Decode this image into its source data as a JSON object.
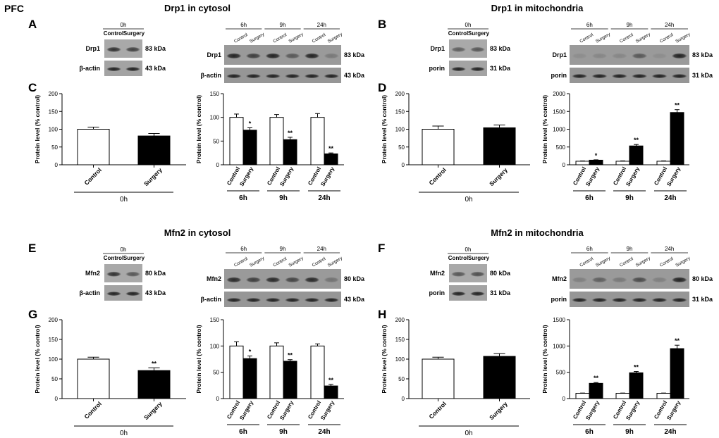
{
  "figure_label": "PFC",
  "sections": [
    {
      "title": "Drp1 in cytosol",
      "blot_panel": "A",
      "chart_panel": "C",
      "reference_protein": "β-actin",
      "target_protein": "Drp1",
      "target_kda": "83 kDa",
      "reference_kda": "43 kDa",
      "blot_small": {
        "time": "0h",
        "lane_labels": [
          "Control",
          "Surgery"
        ],
        "target_band_intensity": [
          0.8,
          0.7
        ],
        "reference_band_intensity": [
          0.9,
          0.9
        ]
      },
      "blot_large": {
        "times": [
          "6h",
          "9h",
          "24h"
        ],
        "lane_labels": [
          "Control",
          "Surgery"
        ],
        "target_band_intensity": [
          0.9,
          0.7,
          0.9,
          0.5,
          0.9,
          0.25
        ],
        "reference_band_intensity": [
          0.9,
          0.9,
          0.9,
          0.9,
          0.9,
          0.9
        ]
      }
    },
    {
      "title": "Drp1 in mitochondria",
      "blot_panel": "B",
      "chart_panel": "D",
      "reference_protein": "porin",
      "target_protein": "Drp1",
      "target_kda": "83 kDa",
      "reference_kda": "31 kDa",
      "blot_small": {
        "time": "0h",
        "lane_labels": [
          "Control",
          "Surgery"
        ],
        "target_band_intensity": [
          0.5,
          0.55
        ],
        "reference_band_intensity": [
          0.9,
          0.9
        ]
      },
      "blot_large": {
        "times": [
          "6h",
          "9h",
          "24h"
        ],
        "lane_labels": [
          "Control",
          "Surgery"
        ],
        "target_band_intensity": [
          0.1,
          0.15,
          0.15,
          0.5,
          0.1,
          0.9
        ],
        "reference_band_intensity": [
          0.9,
          0.9,
          0.9,
          0.9,
          0.9,
          0.9
        ]
      }
    },
    {
      "title": "Mfn2 in cytosol",
      "blot_panel": "E",
      "chart_panel": "G",
      "reference_protein": "β-actin",
      "target_protein": "Mfn2",
      "target_kda": "80 kDa",
      "reference_kda": "43 kDa",
      "blot_small": {
        "time": "0h",
        "lane_labels": [
          "Control",
          "Surgery"
        ],
        "target_band_intensity": [
          0.8,
          0.55
        ],
        "reference_band_intensity": [
          0.9,
          0.9
        ]
      },
      "blot_large": {
        "times": [
          "6h",
          "9h",
          "24h"
        ],
        "lane_labels": [
          "Control",
          "Surgery"
        ],
        "target_band_intensity": [
          0.85,
          0.7,
          0.85,
          0.65,
          0.85,
          0.3
        ],
        "reference_band_intensity": [
          0.9,
          0.9,
          0.9,
          0.9,
          0.9,
          0.9
        ]
      }
    },
    {
      "title": "Mfn2 in mitochondria",
      "blot_panel": "F",
      "chart_panel": "H",
      "reference_protein": "porin",
      "target_protein": "Mfn2",
      "target_kda": "80 kDa",
      "reference_kda": "31 kDa",
      "blot_small": {
        "time": "0h",
        "lane_labels": [
          "Control",
          "Surgery"
        ],
        "target_band_intensity": [
          0.55,
          0.6
        ],
        "reference_band_intensity": [
          0.9,
          0.9
        ]
      },
      "blot_large": {
        "times": [
          "6h",
          "9h",
          "24h"
        ],
        "lane_labels": [
          "Control",
          "Surgery"
        ],
        "target_band_intensity": [
          0.2,
          0.45,
          0.25,
          0.6,
          0.2,
          0.9
        ],
        "reference_band_intensity": [
          0.9,
          0.9,
          0.9,
          0.9,
          0.9,
          0.9
        ]
      }
    }
  ],
  "chart_data": [
    {
      "panel": "C",
      "type": "bar",
      "title": "",
      "xlabel": "0h",
      "ylabel": "Protein level (% control)",
      "ylim": [
        0,
        200
      ],
      "yticks": [
        0,
        50,
        100,
        150,
        200
      ],
      "grid": false,
      "legend": "none",
      "categories": [
        "Control",
        "Surgery"
      ],
      "values": [
        100,
        81
      ],
      "errors": [
        6,
        7
      ],
      "fill": [
        "#ffffff",
        "#000000"
      ],
      "sig": [
        "",
        ""
      ]
    },
    {
      "panel": "C",
      "type": "bar",
      "title": "",
      "ylabel": "Protein level (% control)",
      "ylim": [
        0,
        150
      ],
      "yticks": [
        0,
        50,
        100,
        150
      ],
      "grid": false,
      "legend": "none",
      "groups": [
        "6h",
        "9h",
        "24h"
      ],
      "categories": [
        "Control",
        "Surgery"
      ],
      "values": [
        [
          100,
          73
        ],
        [
          100,
          53
        ],
        [
          100,
          23
        ]
      ],
      "errors": [
        [
          7,
          5
        ],
        [
          6,
          5
        ],
        [
          8,
          2
        ]
      ],
      "fill": [
        "#ffffff",
        "#000000"
      ],
      "sig": [
        [
          "",
          "*"
        ],
        [
          "",
          "**"
        ],
        [
          "",
          "**"
        ]
      ]
    },
    {
      "panel": "D",
      "type": "bar",
      "title": "",
      "xlabel": "0h",
      "ylabel": "Protein level (% control)",
      "ylim": [
        0,
        200
      ],
      "yticks": [
        0,
        50,
        100,
        150,
        200
      ],
      "grid": false,
      "legend": "none",
      "categories": [
        "Control",
        "Surgery"
      ],
      "values": [
        100,
        104
      ],
      "errors": [
        9,
        8
      ],
      "fill": [
        "#ffffff",
        "#000000"
      ],
      "sig": [
        "",
        ""
      ]
    },
    {
      "panel": "D",
      "type": "bar",
      "title": "",
      "ylabel": "Protein level (% control)",
      "ylim": [
        0,
        2000
      ],
      "yticks": [
        0,
        500,
        1000,
        1500,
        2000
      ],
      "grid": false,
      "legend": "none",
      "groups": [
        "6h",
        "9h",
        "24h"
      ],
      "categories": [
        "Control",
        "Surgery"
      ],
      "values": [
        [
          100,
          130
        ],
        [
          100,
          530
        ],
        [
          100,
          1470
        ]
      ],
      "errors": [
        [
          8,
          10
        ],
        [
          10,
          40
        ],
        [
          10,
          80
        ]
      ],
      "fill": [
        "#ffffff",
        "#000000"
      ],
      "sig": [
        [
          "",
          "*"
        ],
        [
          "",
          "**"
        ],
        [
          "",
          "**"
        ]
      ]
    },
    {
      "panel": "G",
      "type": "bar",
      "title": "",
      "xlabel": "0h",
      "ylabel": "Protein level (% control)",
      "ylim": [
        0,
        200
      ],
      "yticks": [
        0,
        50,
        100,
        150,
        200
      ],
      "grid": false,
      "legend": "none",
      "categories": [
        "Control",
        "Surgery"
      ],
      "values": [
        100,
        71
      ],
      "errors": [
        5,
        7
      ],
      "fill": [
        "#ffffff",
        "#000000"
      ],
      "sig": [
        "",
        "**"
      ]
    },
    {
      "panel": "G",
      "type": "bar",
      "title": "",
      "ylabel": "Protein level (% control)",
      "ylim": [
        0,
        150
      ],
      "yticks": [
        0,
        50,
        100,
        150
      ],
      "grid": false,
      "legend": "none",
      "groups": [
        "6h",
        "9h",
        "24h"
      ],
      "categories": [
        "Control",
        "Surgery"
      ],
      "values": [
        [
          100,
          76
        ],
        [
          100,
          71
        ],
        [
          100,
          24
        ]
      ],
      "errors": [
        [
          8,
          5
        ],
        [
          6,
          3
        ],
        [
          4,
          3
        ]
      ],
      "fill": [
        "#ffffff",
        "#000000"
      ],
      "sig": [
        [
          "",
          "*"
        ],
        [
          "",
          "**"
        ],
        [
          "",
          "**"
        ]
      ]
    },
    {
      "panel": "H",
      "type": "bar",
      "title": "",
      "xlabel": "0h",
      "ylabel": "Protein level (% control)",
      "ylim": [
        0,
        200
      ],
      "yticks": [
        0,
        50,
        100,
        150,
        200
      ],
      "grid": false,
      "legend": "none",
      "categories": [
        "Control",
        "Surgery"
      ],
      "values": [
        100,
        107
      ],
      "errors": [
        5,
        7
      ],
      "fill": [
        "#ffffff",
        "#000000"
      ],
      "sig": [
        "",
        ""
      ]
    },
    {
      "panel": "H",
      "type": "bar",
      "title": "",
      "ylabel": "Protein level (% control)",
      "ylim": [
        0,
        1500
      ],
      "yticks": [
        0,
        500,
        1000,
        1500
      ],
      "grid": false,
      "legend": "none",
      "groups": [
        "6h",
        "9h",
        "24h"
      ],
      "categories": [
        "Control",
        "Surgery"
      ],
      "values": [
        [
          100,
          290
        ],
        [
          100,
          490
        ],
        [
          100,
          950
        ]
      ],
      "errors": [
        [
          5,
          15
        ],
        [
          5,
          25
        ],
        [
          5,
          65
        ]
      ],
      "fill": [
        "#ffffff",
        "#000000"
      ],
      "sig": [
        [
          "",
          "**"
        ],
        [
          "",
          "**"
        ],
        [
          "",
          "**"
        ]
      ]
    }
  ]
}
